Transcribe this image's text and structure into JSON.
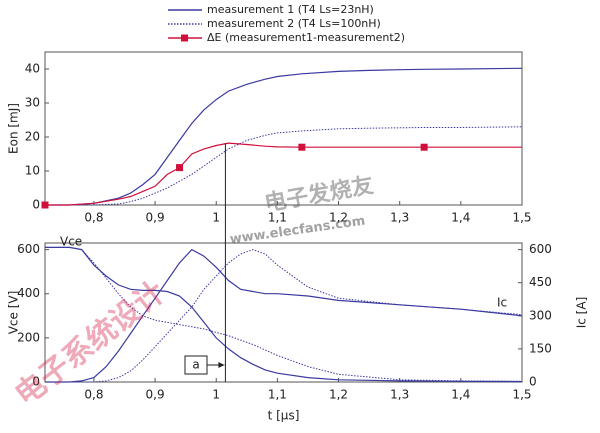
{
  "chart_data": [
    {
      "type": "line",
      "y_label": "Eon [mJ]",
      "xlim": [
        0.72,
        1.5
      ],
      "xticks": [
        {
          "value": 0.8,
          "label": "0,8"
        },
        {
          "value": 0.9,
          "label": "0,9"
        },
        1,
        {
          "value": 1.1,
          "label": "1,1"
        },
        {
          "value": 1.2,
          "label": "1,2"
        },
        {
          "value": 1.3,
          "label": "1,3"
        },
        {
          "value": 1.4,
          "label": "1,4"
        },
        {
          "value": 1.5,
          "label": "1,5"
        }
      ],
      "ylim": [
        0,
        45
      ],
      "yticks": [
        0,
        10,
        20,
        30,
        40
      ],
      "legend": "top",
      "cursor_x": 1.015,
      "x": [
        0.72,
        0.76,
        0.8,
        0.84,
        0.86,
        0.88,
        0.9,
        0.92,
        0.94,
        0.96,
        0.98,
        1.0,
        1.02,
        1.05,
        1.08,
        1.1,
        1.14,
        1.2,
        1.25,
        1.3,
        1.34,
        1.4,
        1.5
      ],
      "series": [
        {
          "name": "measurement 1 (T4 Ls=23nH)",
          "color": "#3a3aa0",
          "dash": "solid",
          "values": [
            0,
            0,
            0.5,
            2,
            3.5,
            6,
            9,
            14,
            19,
            24,
            28,
            31,
            33.5,
            35.5,
            37,
            37.8,
            38.6,
            39.3,
            39.6,
            39.8,
            39.9,
            40,
            40.2
          ]
        },
        {
          "name": "measurement 2 (T4 Ls=100nH)",
          "color": "#3a3aa0",
          "dash": "dotted",
          "values": [
            0,
            0,
            0,
            0.3,
            1,
            2,
            3.5,
            5,
            7,
            9,
            11.5,
            14,
            16.5,
            19,
            20.5,
            21.2,
            21.8,
            22.4,
            22.6,
            22.7,
            22.8,
            22.8,
            23
          ]
        },
        {
          "name": "ΔE (measurement1-measurement2)",
          "color": "#d0103a",
          "dash": "solid",
          "markers": [
            0,
            8,
            16,
            20
          ],
          "values": [
            0,
            0,
            0.5,
            1.7,
            2.5,
            4,
            5.5,
            9,
            11,
            15,
            16.5,
            17.5,
            18.2,
            17.8,
            17.3,
            17.1,
            17,
            17,
            17,
            17,
            17,
            17,
            17
          ]
        }
      ]
    },
    {
      "type": "line",
      "x_label": "t [µs]",
      "y_label": "Vce [V]",
      "y2_label": "Ic [A]",
      "annotations": [
        "Vce",
        "Ic",
        "a"
      ],
      "xlim": [
        0.72,
        1.5
      ],
      "xticks": [
        {
          "value": 0.8,
          "label": "0,8"
        },
        {
          "value": 0.9,
          "label": "0,9"
        },
        1,
        {
          "value": 1.1,
          "label": "1,1"
        },
        {
          "value": 1.2,
          "label": "1,2"
        },
        {
          "value": 1.3,
          "label": "1,3"
        },
        {
          "value": 1.4,
          "label": "1,4"
        },
        {
          "value": 1.5,
          "label": "1,5"
        }
      ],
      "ylim": [
        0,
        630
      ],
      "yticks": [
        0,
        200,
        400,
        600
      ],
      "y2lim": [
        0,
        630
      ],
      "y2ticks": [
        0,
        150,
        300,
        450,
        600
      ],
      "x": [
        0.72,
        0.76,
        0.78,
        0.8,
        0.82,
        0.84,
        0.86,
        0.88,
        0.9,
        0.92,
        0.94,
        0.96,
        0.98,
        1.0,
        1.02,
        1.04,
        1.06,
        1.08,
        1.1,
        1.15,
        1.2,
        1.3,
        1.4,
        1.5
      ],
      "series": [
        {
          "color": "#3a3aa0",
          "dash": "solid",
          "values": [
            610,
            610,
            600,
            530,
            480,
            440,
            420,
            415,
            415,
            410,
            390,
            340,
            270,
            200,
            150,
            110,
            80,
            55,
            40,
            20,
            10,
            5,
            3,
            2
          ]
        },
        {
          "color": "#3a3aa0",
          "dash": "dotted",
          "values": [
            610,
            610,
            600,
            540,
            470,
            400,
            340,
            300,
            280,
            270,
            260,
            250,
            240,
            225,
            210,
            190,
            170,
            145,
            120,
            70,
            35,
            10,
            5,
            3
          ]
        },
        {
          "color": "#3a3aa0",
          "dash": "solid",
          "axis": "y2",
          "values": [
            0,
            0,
            5,
            20,
            70,
            140,
            220,
            300,
            380,
            460,
            540,
            600,
            570,
            520,
            460,
            420,
            410,
            400,
            400,
            390,
            370,
            350,
            330,
            300
          ]
        },
        {
          "color": "#3a3aa0",
          "dash": "dotted",
          "axis": "y2",
          "values": [
            0,
            0,
            0,
            0,
            5,
            20,
            50,
            100,
            160,
            220,
            280,
            340,
            420,
            480,
            540,
            580,
            600,
            580,
            530,
            430,
            380,
            350,
            330,
            305
          ]
        }
      ]
    }
  ],
  "watermark": [
    "电子系统设计",
    "电子发烧友",
    "www.elecfans.com"
  ]
}
